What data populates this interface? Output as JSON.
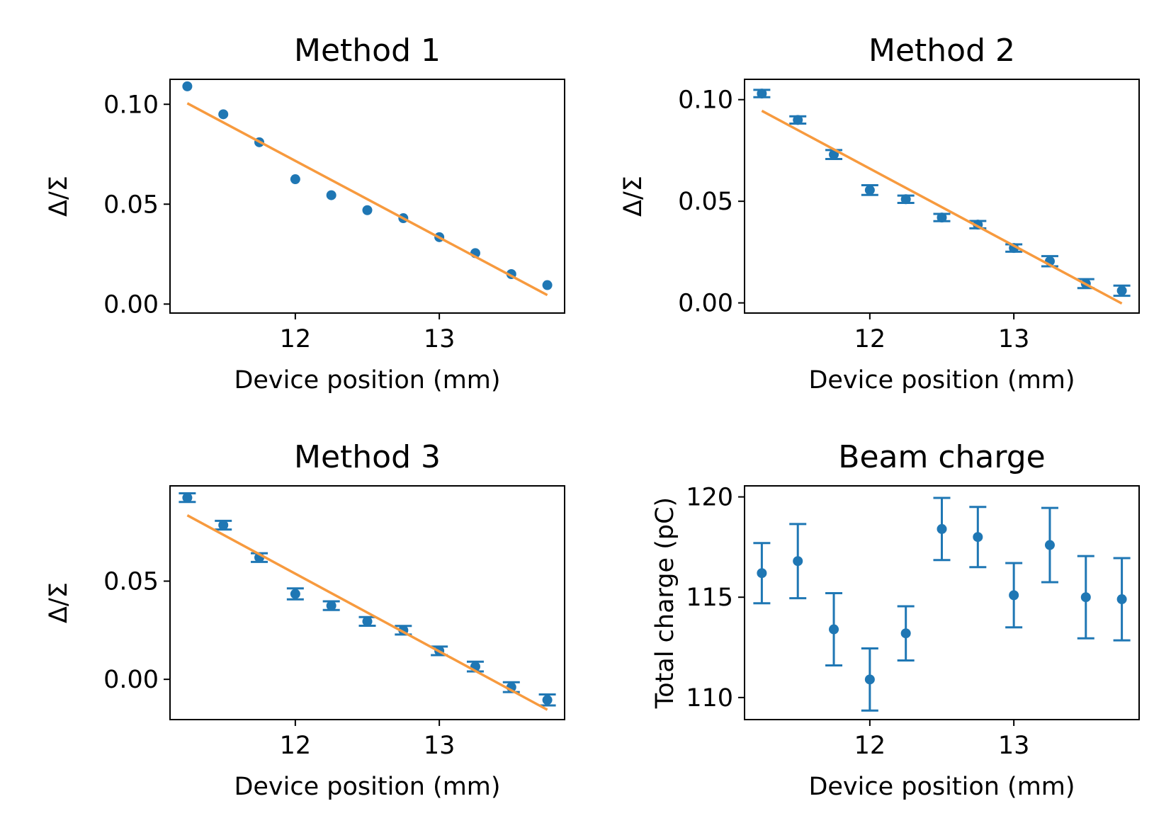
{
  "colors": {
    "marker": "#1f77b4",
    "fit_line": "#f79a3e",
    "axes": "#000000",
    "background": "#ffffff"
  },
  "chart_data": [
    {
      "id": "m1",
      "type": "scatter",
      "title": "Method 1",
      "xlabel": "Device position (mm)",
      "ylabel": "Δ/Σ",
      "xlim": [
        11.13,
        13.87
      ],
      "ylim": [
        -0.0045,
        0.1125
      ],
      "xticks": [
        12,
        13
      ],
      "xtick_labels": [
        "12",
        "13"
      ],
      "yticks": [
        0.0,
        0.05,
        0.1
      ],
      "ytick_labels": [
        "0.00",
        "0.05",
        "0.10"
      ],
      "grid": false,
      "legend": "none",
      "series": [
        {
          "kind": "points",
          "x": [
            11.25,
            11.5,
            11.75,
            12.0,
            12.25,
            12.5,
            12.75,
            13.0,
            13.25,
            13.5,
            13.75
          ],
          "y": [
            0.109,
            0.095,
            0.081,
            0.0625,
            0.0545,
            0.047,
            0.043,
            0.0335,
            0.0255,
            0.015,
            0.0095
          ]
        },
        {
          "kind": "fit_line",
          "x": [
            11.25,
            13.75
          ],
          "y": [
            0.1005,
            0.0045
          ]
        }
      ]
    },
    {
      "id": "m2",
      "type": "scatter",
      "title": "Method 2",
      "xlabel": "Device position (mm)",
      "ylabel": "Δ/Σ",
      "xlim": [
        11.13,
        13.87
      ],
      "ylim": [
        -0.005,
        0.11
      ],
      "xticks": [
        12,
        13
      ],
      "xtick_labels": [
        "12",
        "13"
      ],
      "yticks": [
        0.0,
        0.05,
        0.1
      ],
      "ytick_labels": [
        "0.00",
        "0.05",
        "0.10"
      ],
      "grid": false,
      "legend": "none",
      "series": [
        {
          "kind": "points_with_errorbars",
          "x": [
            11.25,
            11.5,
            11.75,
            12.0,
            12.25,
            12.5,
            12.75,
            13.0,
            13.25,
            13.5,
            13.75
          ],
          "y": [
            0.103,
            0.09,
            0.073,
            0.0555,
            0.051,
            0.042,
            0.0385,
            0.027,
            0.0205,
            0.0095,
            0.006
          ],
          "yerr": [
            0.0018,
            0.0018,
            0.0022,
            0.0024,
            0.0018,
            0.0018,
            0.0018,
            0.0018,
            0.0025,
            0.0022,
            0.0025
          ]
        },
        {
          "kind": "fit_line",
          "x": [
            11.25,
            13.75
          ],
          "y": [
            0.0945,
            -0.0003
          ]
        }
      ]
    },
    {
      "id": "m3",
      "type": "scatter",
      "title": "Method 3",
      "xlabel": "Device position (mm)",
      "ylabel": "Δ/Σ",
      "xlim": [
        11.13,
        13.87
      ],
      "ylim": [
        -0.0205,
        0.0985
      ],
      "xticks": [
        12,
        13
      ],
      "xtick_labels": [
        "12",
        "13"
      ],
      "yticks": [
        0.0,
        0.05
      ],
      "ytick_labels": [
        "0.00",
        "0.05"
      ],
      "grid": false,
      "legend": "none",
      "series": [
        {
          "kind": "points_with_errorbars",
          "x": [
            11.25,
            11.5,
            11.75,
            12.0,
            12.25,
            12.5,
            12.75,
            13.0,
            13.25,
            13.5,
            13.75
          ],
          "y": [
            0.0925,
            0.0785,
            0.062,
            0.0435,
            0.0375,
            0.0295,
            0.025,
            0.0145,
            0.0065,
            -0.004,
            -0.0105
          ],
          "yerr": [
            0.0022,
            0.0022,
            0.0022,
            0.0028,
            0.0022,
            0.0022,
            0.0022,
            0.0022,
            0.0025,
            0.0025,
            0.0028
          ]
        },
        {
          "kind": "fit_line",
          "x": [
            11.25,
            13.75
          ],
          "y": [
            0.0835,
            -0.0155
          ]
        }
      ]
    },
    {
      "id": "bc",
      "type": "scatter",
      "title": "Beam charge",
      "xlabel": "Device position (mm)",
      "ylabel": "Total charge (pC)",
      "xlim": [
        11.13,
        13.87
      ],
      "ylim": [
        108.9,
        120.55
      ],
      "xticks": [
        12,
        13
      ],
      "xtick_labels": [
        "12",
        "13"
      ],
      "yticks": [
        110,
        115,
        120
      ],
      "ytick_labels": [
        "110",
        "115",
        "120"
      ],
      "grid": false,
      "legend": "none",
      "series": [
        {
          "kind": "points_with_errorbars",
          "x": [
            11.25,
            11.5,
            11.75,
            12.0,
            12.25,
            12.5,
            12.75,
            13.0,
            13.25,
            13.5,
            13.75
          ],
          "y": [
            116.2,
            116.8,
            113.4,
            110.9,
            113.2,
            118.4,
            118.0,
            115.1,
            117.6,
            115.0,
            114.9
          ],
          "yerr": [
            1.5,
            1.85,
            1.8,
            1.55,
            1.35,
            1.55,
            1.5,
            1.6,
            1.85,
            2.05,
            2.05
          ]
        }
      ]
    }
  ]
}
